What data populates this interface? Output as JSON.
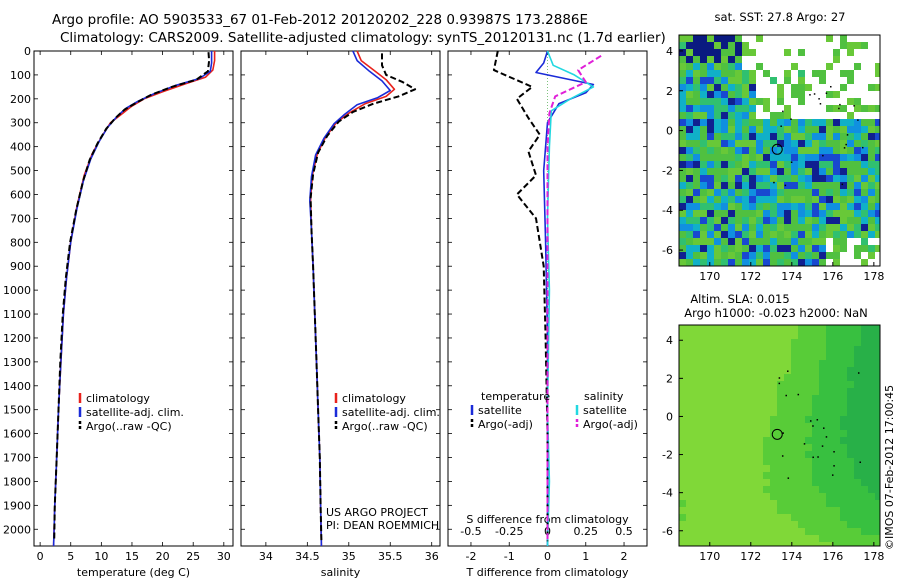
{
  "header": {
    "line1": "Argo profile: AO 5903533_67 01-Feb-2012 20120202_228 0.93987S 173.2886E",
    "line2": "Climatology: CARS2009. Satellite-adjusted climatology: synTS_20120131.nc (1.7d earlier)"
  },
  "colors": {
    "climatology": "#e8221c",
    "satellite": "#1a2bd8",
    "argo": "#000000",
    "sal_satellite": "#22d8e0",
    "sal_argo": "#e020d8",
    "map_land": "#ffffff"
  },
  "depth_axis": {
    "ticks": [
      0,
      100,
      200,
      300,
      400,
      500,
      600,
      700,
      800,
      900,
      1000,
      1100,
      1200,
      1300,
      1400,
      1500,
      1600,
      1700,
      1800,
      1900,
      2000
    ],
    "min": 0,
    "max": 2070
  },
  "chart_data": [
    {
      "type": "line",
      "name": "temperature-profile",
      "xlabel": "temperature (deg C)",
      "ylabel": "",
      "xlim": [
        -1,
        31.5
      ],
      "ylim": [
        2070,
        0
      ],
      "xticks": [
        0,
        5,
        10,
        15,
        20,
        25,
        30
      ],
      "legend": [
        "climatology",
        "satellite-adj. clim.",
        "Argo(..raw -QC)"
      ],
      "series": [
        {
          "name": "climatology",
          "style": "solid",
          "color": "climatology",
          "points": [
            [
              28.5,
              0
            ],
            [
              28.5,
              40
            ],
            [
              28.2,
              80
            ],
            [
              27.0,
              110
            ],
            [
              24.0,
              135
            ],
            [
              20.0,
              170
            ],
            [
              17.0,
              200
            ],
            [
              15.0,
              230
            ],
            [
              13.5,
              260
            ],
            [
              11.5,
              300
            ],
            [
              10.0,
              360
            ],
            [
              8.5,
              430
            ],
            [
              7.2,
              520
            ],
            [
              6.0,
              650
            ],
            [
              5.0,
              800
            ],
            [
              4.3,
              950
            ],
            [
              3.8,
              1100
            ],
            [
              3.4,
              1300
            ],
            [
              3.0,
              1500
            ],
            [
              2.7,
              1700
            ],
            [
              2.4,
              1900
            ],
            [
              2.2,
              2070
            ]
          ]
        },
        {
          "name": "satellite-adj. clim.",
          "style": "solid",
          "color": "satellite",
          "points": [
            [
              28.0,
              0
            ],
            [
              28.0,
              50
            ],
            [
              27.8,
              85
            ],
            [
              26.0,
              115
            ],
            [
              22.0,
              145
            ],
            [
              18.5,
              180
            ],
            [
              16.0,
              210
            ],
            [
              14.0,
              240
            ],
            [
              12.5,
              275
            ],
            [
              11.0,
              320
            ],
            [
              9.6,
              380
            ],
            [
              8.3,
              450
            ],
            [
              7.1,
              540
            ],
            [
              6.0,
              660
            ],
            [
              5.0,
              800
            ],
            [
              4.3,
              950
            ],
            [
              3.8,
              1100
            ],
            [
              3.4,
              1300
            ],
            [
              3.0,
              1500
            ],
            [
              2.7,
              1700
            ],
            [
              2.4,
              1900
            ],
            [
              2.2,
              2070
            ]
          ]
        },
        {
          "name": "Argo(..raw -QC)",
          "style": "dashed",
          "color": "argo",
          "points": [
            [
              27.5,
              5
            ],
            [
              27.6,
              40
            ],
            [
              27.4,
              85
            ],
            [
              25.5,
              120
            ],
            [
              21.5,
              150
            ],
            [
              18.0,
              185
            ],
            [
              15.8,
              215
            ],
            [
              13.8,
              245
            ],
            [
              12.3,
              280
            ],
            [
              10.8,
              325
            ],
            [
              9.4,
              385
            ],
            [
              8.1,
              455
            ],
            [
              7.0,
              545
            ],
            [
              5.9,
              665
            ],
            [
              4.9,
              800
            ],
            [
              4.2,
              950
            ],
            [
              3.7,
              1100
            ],
            [
              3.3,
              1300
            ],
            [
              3.0,
              1500
            ],
            [
              2.7,
              1700
            ],
            [
              2.4,
              1900
            ],
            [
              2.3,
              2050
            ]
          ]
        }
      ]
    },
    {
      "type": "line",
      "name": "salinity-profile",
      "xlabel": "salinity",
      "xlim": [
        33.7,
        36.1
      ],
      "ylim": [
        2070,
        0
      ],
      "xticks": [
        34,
        34.5,
        35,
        35.5,
        36
      ],
      "xticklabels": [
        "34",
        "34.5",
        "35",
        "35.5",
        "36"
      ],
      "legend": [
        "climatology",
        "satellite-adj. clim.",
        "Argo(..raw -QC)"
      ],
      "note_lines": [
        "US ARGO PROJECT",
        "PI: DEAN ROEMMICH"
      ],
      "series": [
        {
          "name": "climatology",
          "style": "solid",
          "color": "climatology",
          "points": [
            [
              35.1,
              0
            ],
            [
              35.15,
              40
            ],
            [
              35.3,
              80
            ],
            [
              35.45,
              120
            ],
            [
              35.55,
              160
            ],
            [
              35.45,
              190
            ],
            [
              35.2,
              220
            ],
            [
              35.0,
              260
            ],
            [
              34.85,
              300
            ],
            [
              34.72,
              360
            ],
            [
              34.62,
              430
            ],
            [
              34.56,
              520
            ],
            [
              34.54,
              620
            ],
            [
              34.55,
              750
            ],
            [
              34.57,
              900
            ],
            [
              34.59,
              1100
            ],
            [
              34.61,
              1300
            ],
            [
              34.63,
              1500
            ],
            [
              34.65,
              1700
            ],
            [
              34.66,
              1900
            ],
            [
              34.67,
              2070
            ]
          ]
        },
        {
          "name": "satellite-adj. clim.",
          "style": "solid",
          "color": "satellite",
          "points": [
            [
              35.05,
              0
            ],
            [
              35.1,
              40
            ],
            [
              35.25,
              85
            ],
            [
              35.4,
              125
            ],
            [
              35.5,
              165
            ],
            [
              35.35,
              195
            ],
            [
              35.1,
              225
            ],
            [
              34.95,
              265
            ],
            [
              34.82,
              305
            ],
            [
              34.7,
              365
            ],
            [
              34.6,
              435
            ],
            [
              34.55,
              525
            ],
            [
              34.53,
              625
            ],
            [
              34.55,
              750
            ],
            [
              34.57,
              900
            ],
            [
              34.59,
              1100
            ],
            [
              34.61,
              1300
            ],
            [
              34.63,
              1500
            ],
            [
              34.65,
              1700
            ],
            [
              34.66,
              1900
            ],
            [
              34.67,
              2070
            ]
          ]
        },
        {
          "name": "Argo(..raw -QC)",
          "style": "dashed",
          "color": "argo",
          "points": [
            [
              35.4,
              10
            ],
            [
              35.4,
              60
            ],
            [
              35.45,
              100
            ],
            [
              35.65,
              130
            ],
            [
              35.8,
              160
            ],
            [
              35.6,
              190
            ],
            [
              35.3,
              220
            ],
            [
              35.05,
              255
            ],
            [
              34.88,
              295
            ],
            [
              34.74,
              355
            ],
            [
              34.63,
              425
            ],
            [
              34.57,
              515
            ],
            [
              34.54,
              615
            ],
            [
              34.55,
              750
            ],
            [
              34.57,
              900
            ],
            [
              34.59,
              1100
            ],
            [
              34.61,
              1300
            ],
            [
              34.63,
              1500
            ],
            [
              34.65,
              1700
            ],
            [
              34.66,
              1900
            ],
            [
              34.67,
              2050
            ]
          ]
        }
      ]
    },
    {
      "type": "line",
      "name": "difference-profile",
      "xlabel": "T difference from climatology",
      "top_label": "S difference from climatology",
      "xlim": [
        -2.6,
        2.6
      ],
      "ylim": [
        2070,
        0
      ],
      "xticks": [
        -2,
        -1,
        0,
        1,
        2
      ],
      "top_ticks": [
        "-0.5",
        "-0.25",
        "0",
        "0.25",
        "0.5"
      ],
      "legend_titles": [
        "temperature",
        "salinity"
      ],
      "legend": [
        "satellite",
        "Argo(-adj)",
        "satellite",
        "Argo(-adj)"
      ],
      "series": [
        {
          "name": "T satellite",
          "style": "solid",
          "color": "satellite",
          "points": [
            [
              0.0,
              0
            ],
            [
              -0.1,
              50
            ],
            [
              -0.3,
              90
            ],
            [
              1.2,
              140
            ],
            [
              1.0,
              175
            ],
            [
              0.3,
              220
            ],
            [
              0.0,
              300
            ],
            [
              -0.1,
              500
            ],
            [
              -0.05,
              800
            ],
            [
              0.0,
              1200
            ],
            [
              0.0,
              1700
            ],
            [
              0.0,
              2070
            ]
          ]
        },
        {
          "name": "S satellite",
          "style": "solid",
          "color": "sal_satellite",
          "points": [
            [
              0.0,
              0
            ],
            [
              0.15,
              60
            ],
            [
              0.7,
              100
            ],
            [
              1.2,
              150
            ],
            [
              0.6,
              200
            ],
            [
              0.1,
              250
            ],
            [
              0.05,
              400
            ],
            [
              0.0,
              700
            ],
            [
              0.05,
              1000
            ],
            [
              0.0,
              1500
            ],
            [
              0.05,
              1800
            ],
            [
              0.0,
              2070
            ]
          ]
        },
        {
          "name": "T Argo(-adj)",
          "style": "dashed",
          "color": "argo",
          "points": [
            [
              -1.3,
              0
            ],
            [
              -1.4,
              80
            ],
            [
              -0.4,
              150
            ],
            [
              -0.8,
              200
            ],
            [
              -0.5,
              280
            ],
            [
              -0.2,
              350
            ],
            [
              -0.5,
              420
            ],
            [
              -0.3,
              520
            ],
            [
              -0.8,
              600
            ],
            [
              -0.3,
              700
            ],
            [
              -0.1,
              900
            ],
            [
              -0.05,
              1200
            ],
            [
              0.0,
              1600
            ],
            [
              0.0,
              2050
            ]
          ]
        },
        {
          "name": "S Argo(-adj)",
          "style": "dashed",
          "color": "sal_argo",
          "points": [
            [
              1.4,
              20
            ],
            [
              0.8,
              80
            ],
            [
              1.0,
              130
            ],
            [
              0.2,
              190
            ],
            [
              0.05,
              260
            ],
            [
              0.0,
              400
            ],
            [
              0.0,
              700
            ],
            [
              0.0,
              1000
            ],
            [
              0.0,
              1400
            ],
            [
              0.0,
              1800
            ],
            [
              0.0,
              2050
            ]
          ]
        }
      ]
    },
    {
      "type": "heatmap",
      "name": "sst-map",
      "title": "sat. SST: 27.8 Argo: 27",
      "xticks": [
        "170",
        "172",
        "174",
        "176",
        "178"
      ],
      "yticks": [
        "4",
        "2",
        "0",
        "-2",
        "-4",
        "-6"
      ],
      "xlim": [
        168.5,
        178.3
      ],
      "ylim": [
        -6.8,
        4.8
      ],
      "argo_position": [
        173.29,
        -0.94
      ]
    },
    {
      "type": "heatmap",
      "name": "sla-map",
      "title_lines": [
        "Altim. SLA: 0.015",
        "Argo h1000: -0.023 h2000: NaN"
      ],
      "xticks": [
        "170",
        "172",
        "174",
        "176",
        "178"
      ],
      "yticks": [
        "4",
        "2",
        "0",
        "-2",
        "-4",
        "-6"
      ],
      "xlim": [
        168.5,
        178.3
      ],
      "ylim": [
        -6.8,
        4.8
      ],
      "argo_position": [
        173.29,
        -0.94
      ]
    }
  ],
  "footer": {
    "imos_stamp": "©IMOS 07-Feb-2012 17:00:45"
  }
}
